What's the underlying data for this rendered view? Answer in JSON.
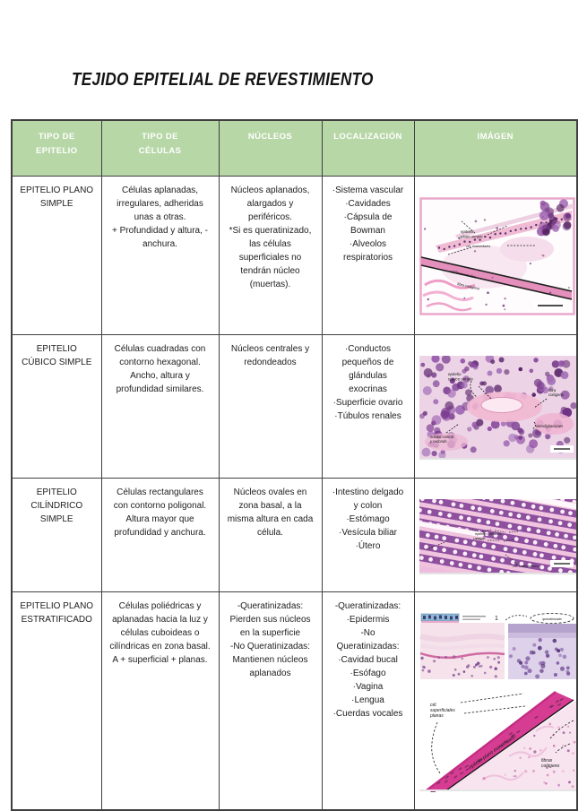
{
  "titulo": "TEJIDO EPITELIAL DE REVESTIMIENTO",
  "tabla": {
    "encabezados": {
      "c1": "TIPO DE\nEPITELIO",
      "c2": "TIPO DE\nCÉLULAS",
      "c3": "NÚCLEOS",
      "c4": "LOCALIZACIÓN",
      "c5": "IMÁGEN"
    },
    "filas": [
      {
        "tipo_epitelio": "EPITELIO PLANO\nSIMPLE",
        "tipo_celulas": "Células aplanadas,\nirregulares, adheridas\nunas a otras.\n+ Profundidad y altura, -\nanchura.",
        "nucleos": "Núcleos aplanados,\nalargados y\nperiféricos.\n*Si es queratinizado,\nlas células\nsuperficiales no\ntendrán núcleo\n(muertas).",
        "localizacion": "·Sistema vascular\n·Cavidades\n·Cápsula de\nBowman\n·Alveolos\nrespiratorios",
        "imagen_etiquetas": {
          "a": "epitelio\nplano simple",
          "b": "cél. endoteliales",
          "c": "cél. músculo liso",
          "d": "fibra colágena"
        }
      },
      {
        "tipo_epitelio": "EPITELIO\nCÚBICO SIMPLE",
        "tipo_celulas": "Células cuadradas con\ncontorno hexagonal.\nAncho, altura y\nprofundidad similares.",
        "nucleos": "Núcleos centrales y\nredondeados",
        "localizacion": "·Conductos\npequeños de\nglándulas\nexocrinas\n·Superficie ovario\n·Túbulos renales",
        "imagen_etiquetas": {
          "a": "epitelio\ncúbico simple",
          "b": "fibra\ncolágeno",
          "c": "interdigitaciones",
          "d": "núcleo central\ny redondo"
        }
      },
      {
        "tipo_epitelio": "EPITELIO\nCILÍNDRICO\nSIMPLE",
        "tipo_celulas": "Células rectangulares\ncon contorno poligonal.\nAltura mayor que\nprofundidad y anchura.",
        "nucleos": "Núcleos ovales en\nzona basal, a la\nmisma altura en cada\ncélula.",
        "localizacion": "·Intestino delgado\ny colon\n·Estómago\n·Vesícula biliar\n·Útero",
        "imagen_etiquetas": {
          "a": "epitelio cilíndrico\nsimple",
          "b": "cél. caliciformes"
        }
      },
      {
        "tipo_epitelio": "EPITELIO PLANO\nESTRATIFICADO",
        "tipo_celulas": "Células poliédricas y\naplanadas hacia la luz y\ncélulas cuboideas o\ncilíndricas en zona basal.\nA + superficial + planas.",
        "nucleos": "-Queratinizadas:\nPierden sus núcleos\nen la superficie\n-No Queratinizadas:\nMantienen núcleos\naplanados",
        "localizacion": "-Queratinizadas:\n·Epidermis\n-No\nQueratinizadas:\n·Cavidad bucal\n·Esófago\n·Vagina\n·Lengua\n·Cuerdas vocales",
        "imagen_etiquetas": {
          "a": "queratinizado",
          "b": "1",
          "c": "cél.\nsuperficiales\nplanas",
          "d": "epitelio plano estratificado",
          "e": "fibras\ncolágeno"
        }
      }
    ]
  }
}
